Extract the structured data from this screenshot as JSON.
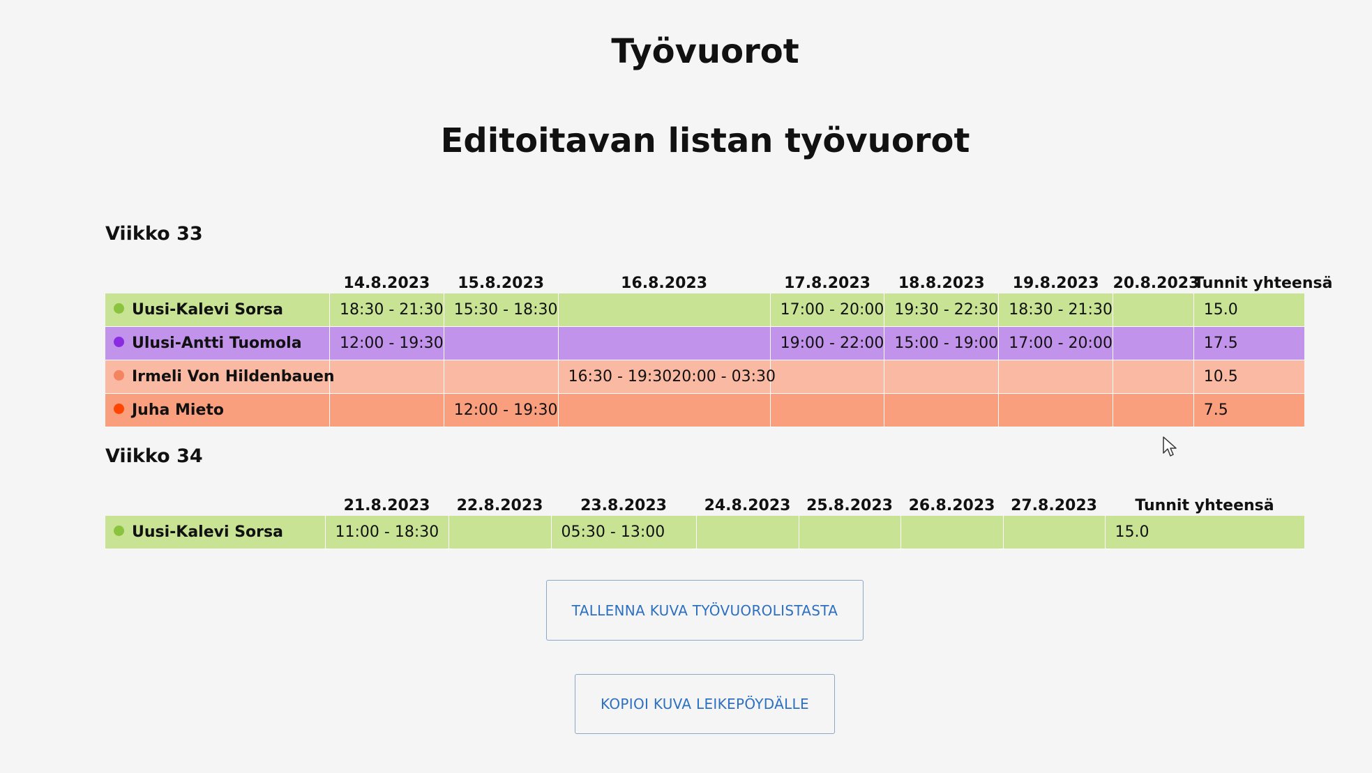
{
  "page": {
    "title": "Työvuorot",
    "subtitle": "Editoitavan listan työvuorot"
  },
  "weeks": [
    {
      "title": "Viikko 33",
      "dates": [
        "14.8.2023",
        "15.8.2023",
        "16.8.2023",
        "17.8.2023",
        "18.8.2023",
        "19.8.2023",
        "20.8.2023"
      ],
      "total_header": "Tunnit yhteensä",
      "rows": [
        {
          "name": "Uusi-Kalevi Sorsa",
          "dot_color": "#8ac43f",
          "row_color": "#c8e394",
          "shifts": [
            "18:30 - 21:30",
            "15:30 - 18:30",
            "",
            "17:00 - 20:00",
            "19:30 - 22:30",
            "18:30 - 21:30",
            ""
          ],
          "total": "15.0"
        },
        {
          "name": "Ulusi-Antti Tuomola",
          "dot_color": "#8a2be2",
          "row_color": "#c193ea",
          "shifts": [
            "12:00 - 19:30",
            "",
            "",
            "19:00 - 22:00",
            "15:00 - 19:00",
            "17:00 - 20:00",
            ""
          ],
          "total": "17.5"
        },
        {
          "name": "Irmeli Von Hildenbauen",
          "dot_color": "#f4845f",
          "row_color": "#f9b9a2",
          "shifts": [
            "",
            "",
            "16:30 - 19:3020:00 - 03:30",
            "",
            "",
            "",
            ""
          ],
          "total": "10.5"
        },
        {
          "name": "Juha Mieto",
          "dot_color": "#ff4500",
          "row_color": "#fa9f7e",
          "shifts": [
            "",
            "12:00 - 19:30",
            "",
            "",
            "",
            "",
            ""
          ],
          "total": "7.5"
        }
      ]
    },
    {
      "title": "Viikko 34",
      "dates": [
        "21.8.2023",
        "22.8.2023",
        "23.8.2023",
        "24.8.2023",
        "25.8.2023",
        "26.8.2023",
        "27.8.2023"
      ],
      "total_header": "Tunnit yhteensä",
      "rows": [
        {
          "name": "Uusi-Kalevi Sorsa",
          "dot_color": "#8ac43f",
          "row_color": "#c8e394",
          "shifts": [
            "11:00 - 18:30",
            "",
            "05:30 - 13:00",
            "",
            "",
            "",
            ""
          ],
          "total": "15.0"
        }
      ]
    }
  ],
  "buttons": {
    "save_label": "TALLENNA KUVA TYÖVUOROLISTASTA",
    "copy_label": "KOPIOI KUVA LEIKEPÖYDÄLLE",
    "color": "#2d6fc0"
  }
}
